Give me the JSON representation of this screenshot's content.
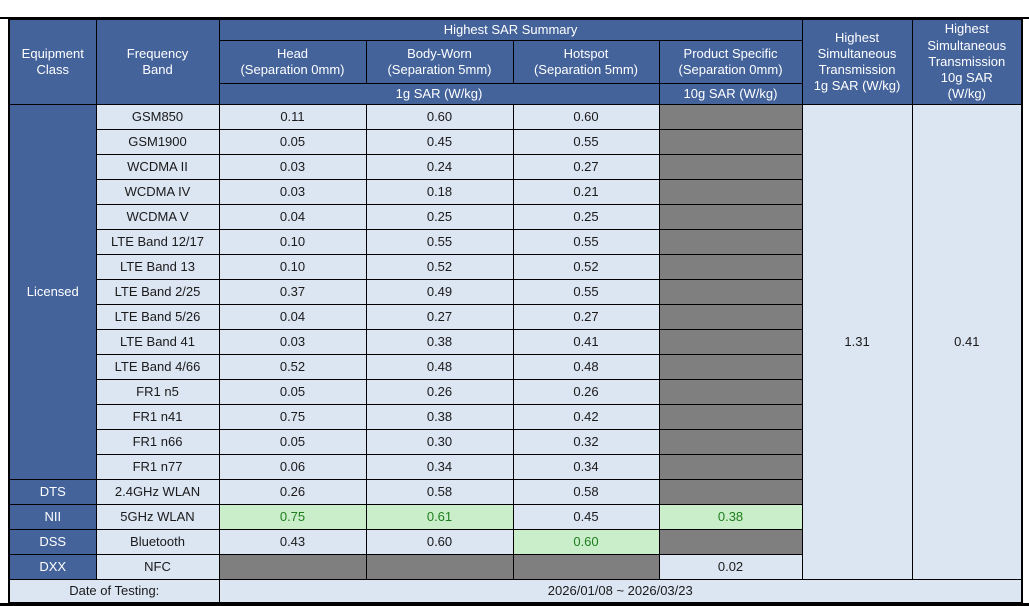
{
  "colors": {
    "header_blue": "#44639B",
    "cell_light_blue": "#DCE5F2",
    "blocked_gray": "#7F7F7F",
    "highlight_green_bg": "#C9EEC9",
    "highlight_green_text": "#1F7D1F",
    "border_black": "#000000",
    "header_text_white": "#FFFFFF"
  },
  "table": {
    "header": {
      "equipment_class": "Equipment\nClass",
      "frequency_band": "Frequency\nBand",
      "sar_summary": "Highest SAR Summary",
      "col_head": "Head\n(Separation 0mm)",
      "col_body": "Body-Worn\n(Separation 5mm)",
      "col_hotspot": "Hotspot\n(Separation 5mm)",
      "col_product": "Product Specific\n(Separation 0mm)",
      "unit_1g": "1g SAR (W/kg)",
      "unit_10g": "10g SAR (W/kg)",
      "sim_1g": "Highest\nSimultaneous\nTransmission\n1g SAR (W/kg)",
      "sim_10g": "Highest\nSimultaneous\nTransmission\n10g SAR\n(W/kg)"
    },
    "groups": [
      {
        "equipment_class": "Licensed",
        "rows": [
          {
            "band": "GSM850",
            "cells": [
              {
                "text": "0.11",
                "style": "normal"
              },
              {
                "text": "0.60",
                "style": "normal"
              },
              {
                "text": "0.60",
                "style": "normal"
              },
              {
                "text": "",
                "style": "gray"
              }
            ]
          },
          {
            "band": "GSM1900",
            "cells": [
              {
                "text": "0.05",
                "style": "normal"
              },
              {
                "text": "0.45",
                "style": "normal"
              },
              {
                "text": "0.55",
                "style": "normal"
              },
              {
                "text": "",
                "style": "gray"
              }
            ]
          },
          {
            "band": "WCDMA II",
            "cells": [
              {
                "text": "0.03",
                "style": "normal"
              },
              {
                "text": "0.24",
                "style": "normal"
              },
              {
                "text": "0.27",
                "style": "normal"
              },
              {
                "text": "",
                "style": "gray"
              }
            ]
          },
          {
            "band": "WCDMA IV",
            "cells": [
              {
                "text": "0.03",
                "style": "normal"
              },
              {
                "text": "0.18",
                "style": "normal"
              },
              {
                "text": "0.21",
                "style": "normal"
              },
              {
                "text": "",
                "style": "gray"
              }
            ]
          },
          {
            "band": "WCDMA V",
            "cells": [
              {
                "text": "0.04",
                "style": "normal"
              },
              {
                "text": "0.25",
                "style": "normal"
              },
              {
                "text": "0.25",
                "style": "normal"
              },
              {
                "text": "",
                "style": "gray"
              }
            ]
          },
          {
            "band": "LTE Band 12/17",
            "cells": [
              {
                "text": "0.10",
                "style": "normal"
              },
              {
                "text": "0.55",
                "style": "normal"
              },
              {
                "text": "0.55",
                "style": "normal"
              },
              {
                "text": "",
                "style": "gray"
              }
            ]
          },
          {
            "band": "LTE Band 13",
            "cells": [
              {
                "text": "0.10",
                "style": "normal"
              },
              {
                "text": "0.52",
                "style": "normal"
              },
              {
                "text": "0.52",
                "style": "normal"
              },
              {
                "text": "",
                "style": "gray"
              }
            ]
          },
          {
            "band": "LTE Band 2/25",
            "cells": [
              {
                "text": "0.37",
                "style": "normal"
              },
              {
                "text": "0.49",
                "style": "normal"
              },
              {
                "text": "0.55",
                "style": "normal"
              },
              {
                "text": "",
                "style": "gray"
              }
            ]
          },
          {
            "band": "LTE Band 5/26",
            "cells": [
              {
                "text": "0.04",
                "style": "normal"
              },
              {
                "text": "0.27",
                "style": "normal"
              },
              {
                "text": "0.27",
                "style": "normal"
              },
              {
                "text": "",
                "style": "gray"
              }
            ]
          },
          {
            "band": "LTE Band 41",
            "cells": [
              {
                "text": "0.03",
                "style": "normal"
              },
              {
                "text": "0.38",
                "style": "normal"
              },
              {
                "text": "0.41",
                "style": "normal"
              },
              {
                "text": "",
                "style": "gray"
              }
            ]
          },
          {
            "band": "LTE Band 4/66",
            "cells": [
              {
                "text": "0.52",
                "style": "normal"
              },
              {
                "text": "0.48",
                "style": "normal"
              },
              {
                "text": "0.48",
                "style": "normal"
              },
              {
                "text": "",
                "style": "gray"
              }
            ]
          },
          {
            "band": "FR1 n5",
            "cells": [
              {
                "text": "0.05",
                "style": "normal"
              },
              {
                "text": "0.26",
                "style": "normal"
              },
              {
                "text": "0.26",
                "style": "normal"
              },
              {
                "text": "",
                "style": "gray"
              }
            ]
          },
          {
            "band": "FR1 n41",
            "cells": [
              {
                "text": "0.75",
                "style": "normal"
              },
              {
                "text": "0.38",
                "style": "normal"
              },
              {
                "text": "0.42",
                "style": "normal"
              },
              {
                "text": "",
                "style": "gray"
              }
            ]
          },
          {
            "band": "FR1 n66",
            "cells": [
              {
                "text": "0.05",
                "style": "normal"
              },
              {
                "text": "0.30",
                "style": "normal"
              },
              {
                "text": "0.32",
                "style": "normal"
              },
              {
                "text": "",
                "style": "gray"
              }
            ]
          },
          {
            "band": "FR1 n77",
            "cells": [
              {
                "text": "0.06",
                "style": "normal"
              },
              {
                "text": "0.34",
                "style": "normal"
              },
              {
                "text": "0.34",
                "style": "normal"
              },
              {
                "text": "",
                "style": "gray"
              }
            ]
          }
        ]
      },
      {
        "equipment_class": "DTS",
        "rows": [
          {
            "band": "2.4GHz WLAN",
            "cells": [
              {
                "text": "0.26",
                "style": "normal"
              },
              {
                "text": "0.58",
                "style": "normal"
              },
              {
                "text": "0.58",
                "style": "normal"
              },
              {
                "text": "",
                "style": "gray"
              }
            ]
          }
        ]
      },
      {
        "equipment_class": "NII",
        "rows": [
          {
            "band": "5GHz WLAN",
            "cells": [
              {
                "text": "0.75",
                "style": "green"
              },
              {
                "text": "0.61",
                "style": "green"
              },
              {
                "text": "0.45",
                "style": "normal"
              },
              {
                "text": "0.38",
                "style": "green"
              }
            ]
          }
        ]
      },
      {
        "equipment_class": "DSS",
        "rows": [
          {
            "band": "Bluetooth",
            "cells": [
              {
                "text": "0.43",
                "style": "normal"
              },
              {
                "text": "0.60",
                "style": "normal"
              },
              {
                "text": "0.60",
                "style": "green"
              },
              {
                "text": "",
                "style": "gray"
              }
            ]
          }
        ]
      },
      {
        "equipment_class": "DXX",
        "rows": [
          {
            "band": "NFC",
            "cells": [
              {
                "text": "",
                "style": "gray"
              },
              {
                "text": "",
                "style": "gray"
              },
              {
                "text": "",
                "style": "gray"
              },
              {
                "text": "0.02",
                "style": "normal"
              }
            ]
          }
        ]
      }
    ],
    "simultaneous": {
      "sar_1g": "1.31",
      "sar_10g": "0.41"
    },
    "footer": {
      "label": "Date of Testing:",
      "value": "2026/01/08 ~ 2026/03/23"
    }
  }
}
